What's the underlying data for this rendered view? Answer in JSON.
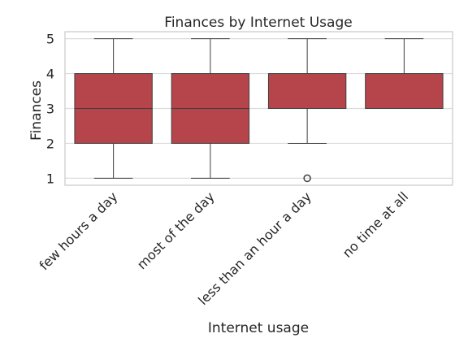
{
  "chart_data": {
    "type": "box",
    "title": "Finances by Internet Usage",
    "xlabel": "Internet usage",
    "ylabel": "Finances",
    "categories": [
      "few hours a day",
      "most of the day",
      "less than an hour a day",
      "no time at all"
    ],
    "boxes": [
      {
        "whisker_low": 1,
        "q1": 2,
        "median": 3,
        "q3": 4,
        "whisker_high": 5,
        "outliers": []
      },
      {
        "whisker_low": 1,
        "q1": 2,
        "median": 3,
        "q3": 4,
        "whisker_high": 5,
        "outliers": []
      },
      {
        "whisker_low": 2,
        "q1": 3,
        "median": 3,
        "q3": 4,
        "whisker_high": 5,
        "outliers": [
          1
        ]
      },
      {
        "whisker_low": 3,
        "q1": 3,
        "median": 3,
        "q3": 4,
        "whisker_high": 5,
        "outliers": []
      }
    ],
    "yticks": [
      1,
      2,
      3,
      4,
      5
    ],
    "ylim": [
      0.8,
      5.2
    ],
    "grid": true,
    "box_color": "#b5454b",
    "line_color": "#3f3f3f",
    "grid_color": "#dcdcdc",
    "frame_color": "#cccccc"
  }
}
